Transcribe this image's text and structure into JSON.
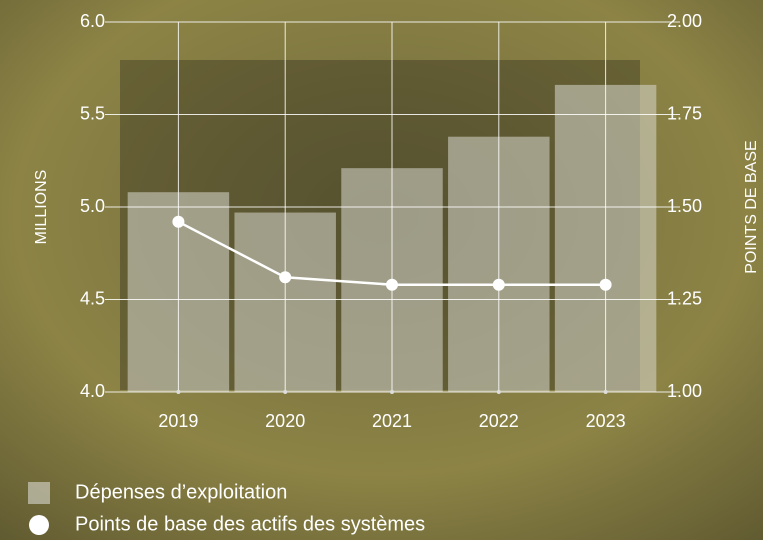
{
  "chart_data": {
    "type": "bar_line",
    "categories": [
      "2019",
      "2020",
      "2021",
      "2022",
      "2023"
    ],
    "y_label": "MILLIONS",
    "y2_label": "POINTS DE BASE",
    "ylim": [
      4.0,
      6.0
    ],
    "yticks": [
      {
        "value": 4.0,
        "label": "4.0"
      },
      {
        "value": 4.5,
        "label": "4.5"
      },
      {
        "value": 5.0,
        "label": "5.0"
      },
      {
        "value": 5.5,
        "label": "5.5"
      },
      {
        "value": 6.0,
        "label": "6.0"
      }
    ],
    "y2lim": [
      1.0,
      2.0
    ],
    "y2ticks": [
      {
        "value": 1.0,
        "label": "1.00"
      },
      {
        "value": 1.25,
        "label": "1.25"
      },
      {
        "value": 1.5,
        "label": "1.50"
      },
      {
        "value": 1.75,
        "label": "1.75"
      },
      {
        "value": 2.0,
        "label": "2.00"
      }
    ],
    "grid": true,
    "series": [
      {
        "name": "Dépenses d’exploitation",
        "type": "bar",
        "color": "#d9d9d0",
        "values": [
          5.08,
          4.97,
          5.21,
          5.38,
          5.66
        ]
      },
      {
        "name": "Points de base des actifs des systèmes",
        "type": "line",
        "axis": "y2",
        "color": "#ffffff",
        "values": [
          1.46,
          1.31,
          1.29,
          1.29,
          1.29
        ]
      }
    ]
  }
}
